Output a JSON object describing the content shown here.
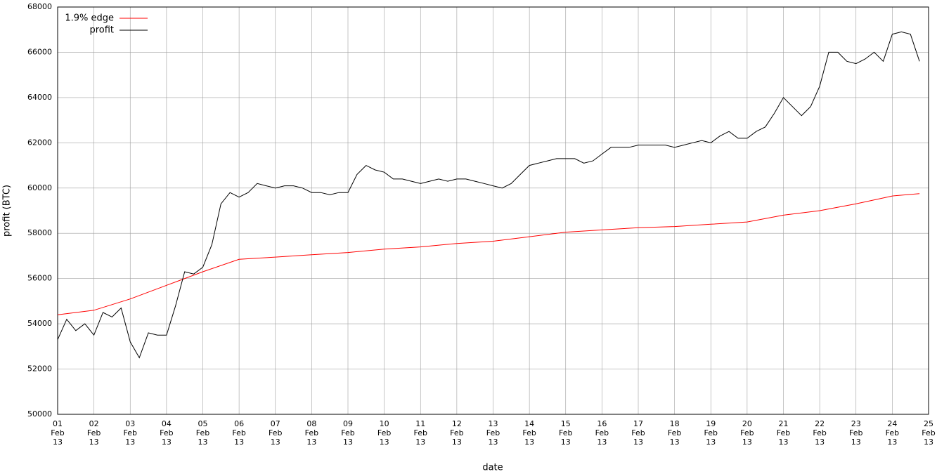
{
  "chart_data": {
    "type": "line",
    "xlabel": "date",
    "ylabel": "profit (BTC)",
    "xlim": [
      "2013-02-01",
      "2013-02-25"
    ],
    "xticks": [
      {
        "value": "2013-02-01",
        "label": "01 Feb 13"
      },
      {
        "value": "2013-02-02",
        "label": "02 Feb 13"
      },
      {
        "value": "2013-02-03",
        "label": "03 Feb 13"
      },
      {
        "value": "2013-02-04",
        "label": "04 Feb 13"
      },
      {
        "value": "2013-02-05",
        "label": "05 Feb 13"
      },
      {
        "value": "2013-02-06",
        "label": "06 Feb 13"
      },
      {
        "value": "2013-02-07",
        "label": "07 Feb 13"
      },
      {
        "value": "2013-02-08",
        "label": "08 Feb 13"
      },
      {
        "value": "2013-02-09",
        "label": "09 Feb 13"
      },
      {
        "value": "2013-02-10",
        "label": "10 Feb 13"
      },
      {
        "value": "2013-02-11",
        "label": "11 Feb 13"
      },
      {
        "value": "2013-02-12",
        "label": "12 Feb 13"
      },
      {
        "value": "2013-02-13",
        "label": "13 Feb 13"
      },
      {
        "value": "2013-02-14",
        "label": "14 Feb 13"
      },
      {
        "value": "2013-02-15",
        "label": "15 Feb 13"
      },
      {
        "value": "2013-02-16",
        "label": "16 Feb 13"
      },
      {
        "value": "2013-02-17",
        "label": "17 Feb 13"
      },
      {
        "value": "2013-02-18",
        "label": "18 Feb 13"
      },
      {
        "value": "2013-02-19",
        "label": "19 Feb 13"
      },
      {
        "value": "2013-02-20",
        "label": "20 Feb 13"
      },
      {
        "value": "2013-02-21",
        "label": "21 Feb 13"
      },
      {
        "value": "2013-02-22",
        "label": "22 Feb 13"
      },
      {
        "value": "2013-02-23",
        "label": "23 Feb 13"
      },
      {
        "value": "2013-02-24",
        "label": "24 Feb 13"
      },
      {
        "value": "2013-02-25",
        "label": "25 Feb 13"
      }
    ],
    "ylim": [
      50000,
      68000
    ],
    "yticks": [
      50000,
      52000,
      54000,
      56000,
      58000,
      60000,
      62000,
      64000,
      66000,
      68000
    ],
    "grid": true,
    "legend": "top-left",
    "series": [
      {
        "name": "1.9% edge",
        "color": "#ff0000",
        "x": [
          "2013-02-01",
          "2013-02-02",
          "2013-02-03",
          "2013-02-04",
          "2013-02-05",
          "2013-02-06",
          "2013-02-07",
          "2013-02-08",
          "2013-02-09",
          "2013-02-10",
          "2013-02-11",
          "2013-02-12",
          "2013-02-13",
          "2013-02-14",
          "2013-02-15",
          "2013-02-16",
          "2013-02-17",
          "2013-02-18",
          "2013-02-19",
          "2013-02-20",
          "2013-02-21",
          "2013-02-22",
          "2013-02-23",
          "2013-02-24",
          "2013-02-24T18:00"
        ],
        "values": [
          54400,
          54600,
          55100,
          55700,
          56300,
          56850,
          56950,
          57050,
          57150,
          57300,
          57400,
          57550,
          57650,
          57850,
          58050,
          58150,
          58250,
          58300,
          58400,
          58500,
          58800,
          59000,
          59300,
          59650,
          59750
        ]
      },
      {
        "name": "profit",
        "color": "#000000",
        "x": [
          "2013-02-01T00:00",
          "2013-02-01T06:00",
          "2013-02-01T12:00",
          "2013-02-01T18:00",
          "2013-02-02T00:00",
          "2013-02-02T06:00",
          "2013-02-02T12:00",
          "2013-02-02T18:00",
          "2013-02-03T00:00",
          "2013-02-03T06:00",
          "2013-02-03T12:00",
          "2013-02-03T18:00",
          "2013-02-04T00:00",
          "2013-02-04T06:00",
          "2013-02-04T12:00",
          "2013-02-04T18:00",
          "2013-02-05T00:00",
          "2013-02-05T06:00",
          "2013-02-05T12:00",
          "2013-02-05T18:00",
          "2013-02-06T00:00",
          "2013-02-06T06:00",
          "2013-02-06T12:00",
          "2013-02-06T18:00",
          "2013-02-07T00:00",
          "2013-02-07T06:00",
          "2013-02-07T12:00",
          "2013-02-07T18:00",
          "2013-02-08T00:00",
          "2013-02-08T06:00",
          "2013-02-08T12:00",
          "2013-02-08T18:00",
          "2013-02-09T00:00",
          "2013-02-09T06:00",
          "2013-02-09T12:00",
          "2013-02-09T18:00",
          "2013-02-10T00:00",
          "2013-02-10T06:00",
          "2013-02-10T12:00",
          "2013-02-10T18:00",
          "2013-02-11T00:00",
          "2013-02-11T06:00",
          "2013-02-11T12:00",
          "2013-02-11T18:00",
          "2013-02-12T00:00",
          "2013-02-12T06:00",
          "2013-02-12T12:00",
          "2013-02-12T18:00",
          "2013-02-13T00:00",
          "2013-02-13T06:00",
          "2013-02-13T12:00",
          "2013-02-13T18:00",
          "2013-02-14T00:00",
          "2013-02-14T06:00",
          "2013-02-14T12:00",
          "2013-02-14T18:00",
          "2013-02-15T00:00",
          "2013-02-15T06:00",
          "2013-02-15T12:00",
          "2013-02-15T18:00",
          "2013-02-16T00:00",
          "2013-02-16T06:00",
          "2013-02-16T12:00",
          "2013-02-16T18:00",
          "2013-02-17T00:00",
          "2013-02-17T06:00",
          "2013-02-17T12:00",
          "2013-02-17T18:00",
          "2013-02-18T00:00",
          "2013-02-18T06:00",
          "2013-02-18T12:00",
          "2013-02-18T18:00",
          "2013-02-19T00:00",
          "2013-02-19T06:00",
          "2013-02-19T12:00",
          "2013-02-19T18:00",
          "2013-02-20T00:00",
          "2013-02-20T06:00",
          "2013-02-20T12:00",
          "2013-02-20T18:00",
          "2013-02-21T00:00",
          "2013-02-21T06:00",
          "2013-02-21T12:00",
          "2013-02-21T18:00",
          "2013-02-22T00:00",
          "2013-02-22T06:00",
          "2013-02-22T12:00",
          "2013-02-22T18:00",
          "2013-02-23T00:00",
          "2013-02-23T06:00",
          "2013-02-23T12:00",
          "2013-02-23T18:00",
          "2013-02-24T00:00",
          "2013-02-24T06:00",
          "2013-02-24T12:00",
          "2013-02-24T18:00"
        ],
        "values": [
          53300,
          54200,
          53700,
          54000,
          53500,
          54500,
          54300,
          54700,
          53200,
          52500,
          53600,
          53500,
          53500,
          54800,
          56300,
          56200,
          56500,
          57500,
          59300,
          59800,
          59600,
          59800,
          60200,
          60100,
          60000,
          60100,
          60100,
          60000,
          59800,
          59800,
          59700,
          59800,
          59800,
          60600,
          61000,
          60800,
          60700,
          60400,
          60400,
          60300,
          60200,
          60300,
          60400,
          60300,
          60400,
          60400,
          60300,
          60200,
          60100,
          60000,
          60200,
          60600,
          61000,
          61100,
          61200,
          61300,
          61300,
          61300,
          61100,
          61200,
          61500,
          61800,
          61800,
          61800,
          61900,
          61900,
          61900,
          61900,
          61800,
          61900,
          62000,
          62100,
          62000,
          62300,
          62500,
          62200,
          62200,
          62500,
          62700,
          63300,
          64000,
          63600,
          63200,
          63600,
          64500,
          66000,
          66000,
          65600,
          65500,
          65700,
          66000,
          65600,
          66800,
          66900,
          66800,
          65600
        ]
      }
    ]
  }
}
